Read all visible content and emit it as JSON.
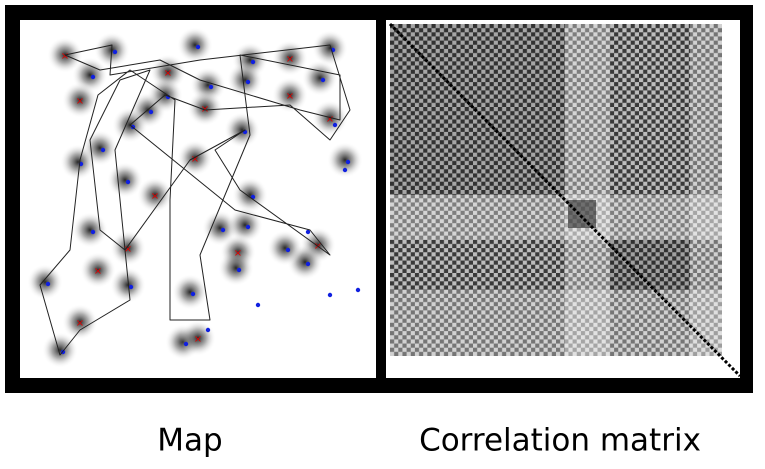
{
  "panels": [
    {
      "label": "Map"
    },
    {
      "label": "Correlation matrix"
    }
  ]
}
